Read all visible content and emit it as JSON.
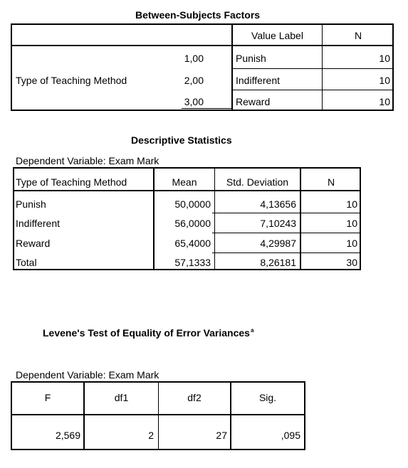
{
  "between": {
    "title": "Between-Subjects Factors",
    "headers": {
      "value_label": "Value Label",
      "n": "N"
    },
    "factor": "Type of Teaching Method",
    "rows": [
      {
        "value": "1,00",
        "label": "Punish",
        "n": "10"
      },
      {
        "value": "2,00",
        "label": "Indifferent",
        "n": "10"
      },
      {
        "value": "3,00",
        "label": "Reward",
        "n": "10"
      }
    ]
  },
  "descriptive": {
    "title": "Descriptive Statistics",
    "dependent": "Dependent Variable: Exam Mark",
    "headers": {
      "method": "Type of Teaching Method",
      "mean": "Mean",
      "sd": "Std. Deviation",
      "n": "N"
    },
    "rows": [
      {
        "method": "Punish",
        "mean": "50,0000",
        "sd": "4,13656",
        "n": "10"
      },
      {
        "method": "Indifferent",
        "mean": "56,0000",
        "sd": "7,10243",
        "n": "10"
      },
      {
        "method": "Reward",
        "mean": "65,4000",
        "sd": "4,29987",
        "n": "10"
      },
      {
        "method": "Total",
        "mean": "57,1333",
        "sd": "8,26181",
        "n": "30"
      }
    ]
  },
  "levene": {
    "title": "Levene's Test of Equality of Error Variances",
    "title_sup": "a",
    "dependent": "Dependent Variable: Exam Mark",
    "headers": {
      "f": "F",
      "df1": "df1",
      "df2": "df2",
      "sig": "Sig."
    },
    "row": {
      "f": "2,569",
      "df1": "2",
      "df2": "27",
      "sig": ",095"
    }
  }
}
